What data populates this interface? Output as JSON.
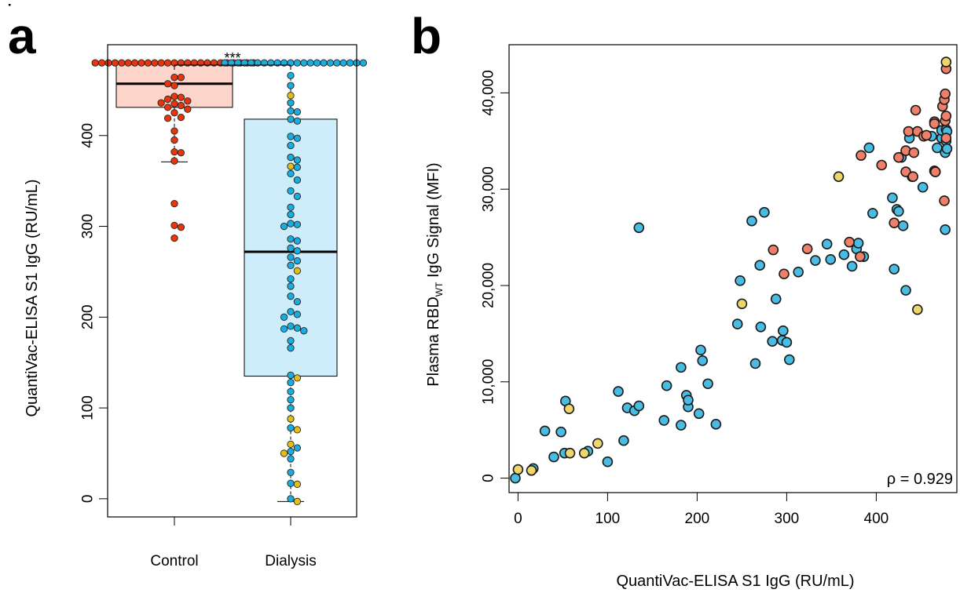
{
  "colors": {
    "control": "#E8350C",
    "control_box": "#FDD5CB",
    "dialysis": "#1AADDF",
    "dialysis_box": "#CDEDFA",
    "dialysis_alt": "#E4BE17",
    "scatter_blue": "#48BCE3",
    "scatter_red": "#EE806A",
    "scatter_yellow": "#EDD76B"
  },
  "chart_data": [
    {
      "panel": "a",
      "type": "box",
      "ylabel": "QuantiVac-ELISA S1 IgG (RU/mL)",
      "ylim": [
        -20,
        500
      ],
      "yticks": [
        0,
        100,
        200,
        300,
        400
      ],
      "categories": [
        "Control",
        "Dialysis"
      ],
      "significance": "***",
      "boxes": [
        {
          "name": "Control",
          "q1": 431,
          "median": 457,
          "q3": 480,
          "whisker_low": 371,
          "whisker_high": 480,
          "points": [
            480,
            480,
            480,
            480,
            480,
            480,
            480,
            480,
            480,
            480,
            480,
            480,
            480,
            480,
            480,
            480,
            480,
            480,
            480,
            480,
            480,
            480,
            480,
            480,
            480,
            464,
            464,
            457,
            455,
            443,
            442,
            440,
            438,
            436,
            435,
            433,
            431,
            429,
            425,
            420,
            419,
            405,
            395,
            382,
            381,
            372,
            325,
            301,
            299,
            287
          ]
        },
        {
          "name": "Dialysis",
          "q1": 135,
          "median": 272,
          "q3": 418,
          "whisker_low": -3,
          "whisker_high": 480,
          "points": [
            480,
            480,
            480,
            480,
            480,
            480,
            480,
            480,
            480,
            480,
            480,
            480,
            480,
            480,
            480,
            480,
            480,
            480,
            480,
            480,
            480,
            480,
            466,
            455,
            444,
            436,
            427,
            426,
            418,
            416,
            399,
            397,
            389,
            376,
            373,
            366,
            365,
            358,
            351,
            339,
            333,
            321,
            313,
            303,
            302,
            300,
            286,
            284,
            276,
            273,
            266,
            262,
            257,
            251,
            242,
            234,
            223,
            217,
            206,
            203,
            200,
            190,
            188,
            187,
            185,
            174,
            166,
            136,
            133,
            128,
            118,
            109,
            100,
            88,
            78,
            76,
            60,
            56,
            52,
            50,
            44,
            29,
            17,
            16,
            0,
            -3
          ],
          "yellow": [
            444,
            366,
            251,
            133,
            88,
            76,
            60,
            50,
            16,
            -3
          ]
        }
      ]
    },
    {
      "panel": "b",
      "type": "scatter",
      "xlabel": "QuantiVac-ELISA S1 IgG (RU/mL)",
      "ylabel": "Plasma RBD",
      "ylabel_sub": "WT",
      "ylabel_suffix": " IgG Signal (MFI)",
      "xlim": [
        -10,
        490
      ],
      "ylim": [
        -1500,
        45000
      ],
      "xticks": [
        0,
        100,
        200,
        300,
        400
      ],
      "yticks": [
        0,
        10000,
        20000,
        30000,
        40000
      ],
      "ytick_labels": [
        "0",
        "10,000",
        "20,000",
        "30,000",
        "40,000"
      ],
      "annotation": "ρ = 0.929",
      "series": [
        {
          "color": "blue",
          "points": [
            [
              -3,
              0
            ],
            [
              17,
              1000
            ],
            [
              30,
              4900
            ],
            [
              40,
              2200
            ],
            [
              48,
              4800
            ],
            [
              52,
              2600
            ],
            [
              53,
              8000
            ],
            [
              78,
              2800
            ],
            [
              100,
              1700
            ],
            [
              112,
              9000
            ],
            [
              118,
              3900
            ],
            [
              122,
              7300
            ],
            [
              130,
              7000
            ],
            [
              135,
              7500
            ],
            [
              135,
              26000
            ],
            [
              163,
              6000
            ],
            [
              166,
              9600
            ],
            [
              182,
              11500
            ],
            [
              182,
              5500
            ],
            [
              188,
              8600
            ],
            [
              190,
              7400
            ],
            [
              190,
              8100
            ],
            [
              202,
              6700
            ],
            [
              204,
              13300
            ],
            [
              206,
              12200
            ],
            [
              212,
              9800
            ],
            [
              221,
              5600
            ],
            [
              245,
              16000
            ],
            [
              248,
              20500
            ],
            [
              261,
              26700
            ],
            [
              265,
              11900
            ],
            [
              270,
              22100
            ],
            [
              271,
              15700
            ],
            [
              275,
              27600
            ],
            [
              284,
              14200
            ],
            [
              288,
              18600
            ],
            [
              295,
              14300
            ],
            [
              296,
              15300
            ],
            [
              300,
              14100
            ],
            [
              303,
              12300
            ],
            [
              313,
              21400
            ],
            [
              332,
              22600
            ],
            [
              345,
              24300
            ],
            [
              349,
              22700
            ],
            [
              364,
              23200
            ],
            [
              373,
              22000
            ],
            [
              378,
              23800
            ],
            [
              380,
              24400
            ],
            [
              386,
              23000
            ],
            [
              392,
              34300
            ],
            [
              396,
              27500
            ],
            [
              418,
              29100
            ],
            [
              420,
              21700
            ],
            [
              423,
              27900
            ],
            [
              425,
              27700
            ],
            [
              428,
              33300
            ],
            [
              430,
              26200
            ],
            [
              433,
              19500
            ],
            [
              437,
              35300
            ],
            [
              440,
              31300
            ],
            [
              452,
              30200
            ],
            [
              462,
              35500
            ],
            [
              465,
              31900
            ],
            [
              466,
              31800
            ],
            [
              468,
              34300
            ],
            [
              473,
              35300
            ],
            [
              473,
              36100
            ],
            [
              477,
              25800
            ],
            [
              477,
              33800
            ],
            [
              478,
              35000
            ],
            [
              478,
              36200
            ],
            [
              479,
              34200
            ],
            [
              479,
              36000
            ]
          ]
        },
        {
          "color": "red",
          "points": [
            [
              285,
              23700
            ],
            [
              297,
              21200
            ],
            [
              323,
              23800
            ],
            [
              370,
              24500
            ],
            [
              382,
              23000
            ],
            [
              383,
              33500
            ],
            [
              406,
              32500
            ],
            [
              420,
              26500
            ],
            [
              425,
              33300
            ],
            [
              433,
              34000
            ],
            [
              433,
              31800
            ],
            [
              436,
              36000
            ],
            [
              441,
              31300
            ],
            [
              442,
              33800
            ],
            [
              444,
              38200
            ],
            [
              446,
              36000
            ],
            [
              453,
              35500
            ],
            [
              456,
              35600
            ],
            [
              465,
              37000
            ],
            [
              465,
              36800
            ],
            [
              466,
              31800
            ],
            [
              474,
              38600
            ],
            [
              476,
              28800
            ],
            [
              476,
              39300
            ],
            [
              477,
              39900
            ],
            [
              477,
              37100
            ],
            [
              478,
              37600
            ],
            [
              478,
              35300
            ],
            [
              478,
              42500
            ]
          ]
        },
        {
          "color": "yellow",
          "points": [
            [
              0,
              900
            ],
            [
              15,
              800
            ],
            [
              57,
              7200
            ],
            [
              58,
              2600
            ],
            [
              74,
              2600
            ],
            [
              89,
              3600
            ],
            [
              250,
              18100
            ],
            [
              358,
              31300
            ],
            [
              446,
              17500
            ],
            [
              478,
              43200
            ]
          ]
        }
      ]
    }
  ]
}
